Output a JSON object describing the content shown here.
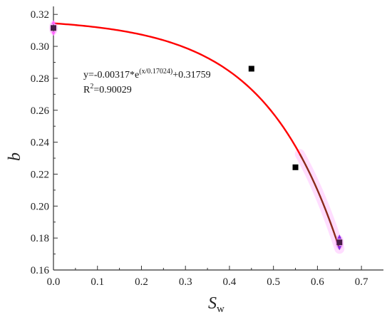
{
  "chart_data": {
    "type": "scatter",
    "xlabel": "S",
    "xlabel_sub": "w",
    "ylabel": "b",
    "xlim": [
      0.0,
      0.75
    ],
    "ylim": [
      0.16,
      0.325
    ],
    "x_ticks": [
      "0.0",
      "0.1",
      "0.2",
      "0.3",
      "0.4",
      "0.5",
      "0.6",
      "0.7"
    ],
    "x_tick_values": [
      0.0,
      0.1,
      0.2,
      0.3,
      0.4,
      0.5,
      0.6,
      0.7
    ],
    "y_ticks": [
      "0.16",
      "0.18",
      "0.20",
      "0.22",
      "0.24",
      "0.26",
      "0.28",
      "0.30",
      "0.32"
    ],
    "y_tick_values": [
      0.16,
      0.18,
      0.2,
      0.22,
      0.24,
      0.26,
      0.28,
      0.3,
      0.32
    ],
    "points": {
      "x": [
        0.0,
        0.45,
        0.55,
        0.65
      ],
      "y": [
        0.3115,
        0.286,
        0.2243,
        0.1773
      ]
    },
    "fit": {
      "equation_prefix": "y=-0.00317*e",
      "equation_exp": "(x/0.17024)",
      "equation_suffix": "+0.31759",
      "r2_prefix": "R",
      "r2_sup": "2",
      "r2_value": "=0.90029",
      "a": -0.00317,
      "t": 0.17024,
      "c": 0.31759,
      "x_range": [
        0.0,
        0.65
      ]
    },
    "grid": false,
    "colors": {
      "fit_line": "#ff0000",
      "fit_line_end": "#8b2a1a",
      "points": "#000000",
      "highlight": "#ff66ff",
      "arrow": "#8a2be2",
      "axis": "#333333"
    }
  }
}
